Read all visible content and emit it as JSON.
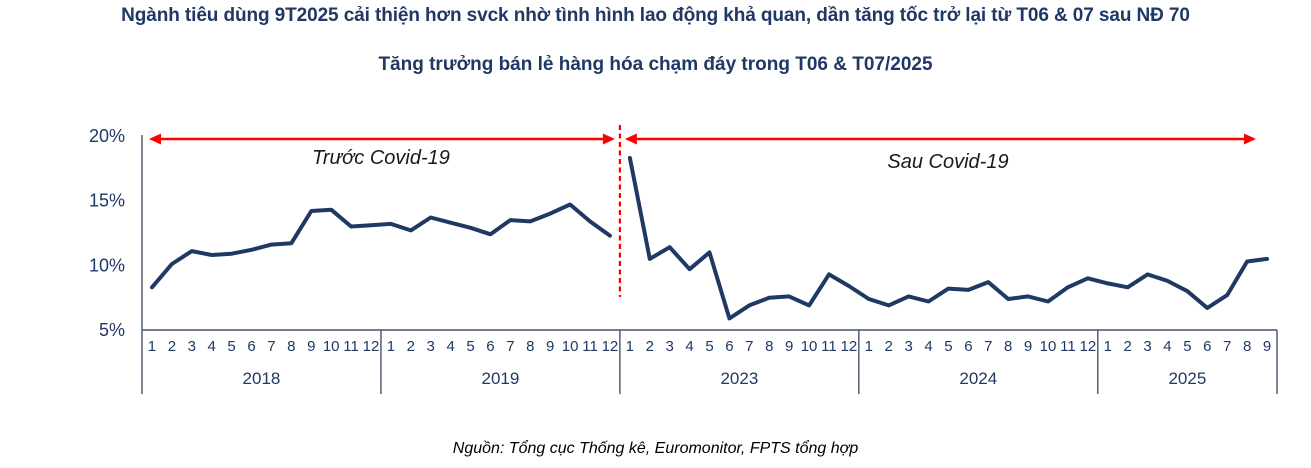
{
  "header": {
    "title": "Ngành tiêu dùng 9T2025 cải thiện hơn svck nhờ tình hình lao động khả quan, dần tăng tốc trở lại từ T06 & 07 sau NĐ 70",
    "subtitle": "Tăng trưởng bán lẻ hàng hóa chạm đáy trong T06 & T07/2025"
  },
  "footer": {
    "source": "Nguồn: Tổng cục Thống kê, Euromonitor, FPTS tổng hợp"
  },
  "colors": {
    "navy_line": "#1F3864",
    "axis": "#44546A",
    "red_annotation": "#FF0000",
    "label_dark": "#1a1a1a"
  },
  "chart_data": {
    "type": "line",
    "title": "Tăng trưởng bán lẻ hàng hóa chạm đáy trong T06 & T07/2025",
    "unit": "%",
    "ylim": [
      5,
      20
    ],
    "yticks": [
      20,
      15,
      10,
      5
    ],
    "grid": false,
    "annotations": [
      {
        "label": "Trước Covid-19",
        "era": "pre-covid",
        "arrow": "double-headed-red"
      },
      {
        "label": "Sau Covid-19",
        "era": "post-covid",
        "arrow": "double-headed-red"
      }
    ],
    "break_marker": "red-dashed-vertical-line-between-2019-and-2023",
    "years": [
      {
        "label": "2018",
        "era": "pre-covid",
        "months": [
          1,
          2,
          3,
          4,
          5,
          6,
          7,
          8,
          9,
          10,
          11,
          12
        ],
        "values": [
          8.3,
          10.1,
          11.1,
          10.8,
          10.9,
          11.2,
          11.6,
          11.7,
          14.2,
          14.3,
          13.0,
          13.1
        ]
      },
      {
        "label": "2019",
        "era": "pre-covid",
        "months": [
          1,
          2,
          3,
          4,
          5,
          6,
          7,
          8,
          9,
          10,
          11,
          12
        ],
        "values": [
          13.2,
          12.7,
          13.7,
          13.3,
          12.9,
          12.4,
          13.5,
          13.4,
          14.0,
          14.7,
          13.4,
          12.3
        ]
      },
      {
        "label": "2023",
        "era": "post-covid",
        "months": [
          1,
          2,
          3,
          4,
          5,
          6,
          7,
          8,
          9,
          10,
          11,
          12
        ],
        "values": [
          18.3,
          10.5,
          11.4,
          9.7,
          11.0,
          5.9,
          6.9,
          7.5,
          7.6,
          6.9,
          9.3,
          8.4
        ]
      },
      {
        "label": "2024",
        "era": "post-covid",
        "months": [
          1,
          2,
          3,
          4,
          5,
          6,
          7,
          8,
          9,
          10,
          11,
          12
        ],
        "values": [
          7.4,
          6.9,
          7.6,
          7.2,
          8.2,
          8.1,
          8.7,
          7.4,
          7.6,
          7.2,
          8.3,
          9.0
        ]
      },
      {
        "label": "2025",
        "era": "post-covid",
        "months": [
          1,
          2,
          3,
          4,
          5,
          6,
          7,
          8,
          9
        ],
        "values": [
          8.6,
          8.3,
          9.3,
          8.8,
          8.0,
          6.7,
          7.7,
          10.3,
          10.5
        ]
      }
    ]
  }
}
